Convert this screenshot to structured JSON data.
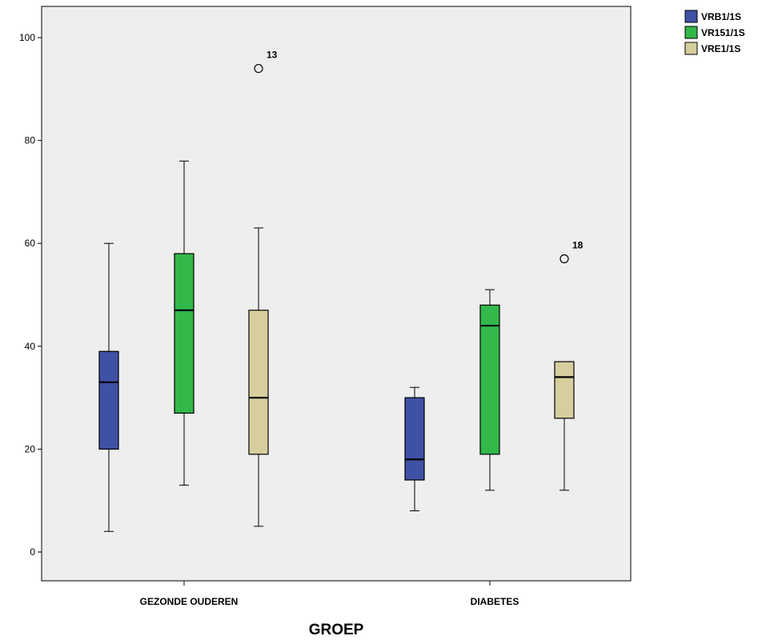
{
  "chart_data": {
    "type": "boxplot",
    "xlabel": "GROEP",
    "ylabel": "",
    "ylim": [
      -5,
      106
    ],
    "yticks": [
      0,
      20,
      40,
      60,
      80,
      100
    ],
    "categories": [
      "GEZONDE OUDEREN",
      "DIABETES"
    ],
    "legend_position": "top-right, outside plot area",
    "background": "#eeeeee",
    "series": [
      {
        "name": "VRB1/1S",
        "color": "#3f51a5",
        "boxes": [
          {
            "min": 4,
            "q1": 20,
            "median": 33,
            "q3": 39,
            "max": 60,
            "outliers": []
          },
          {
            "min": 8,
            "q1": 14,
            "median": 18,
            "q3": 30,
            "max": 32,
            "outliers": []
          }
        ]
      },
      {
        "name": "VR151/1S",
        "color": "#33b84a",
        "boxes": [
          {
            "min": 13,
            "q1": 27,
            "median": 47,
            "q3": 58,
            "max": 76,
            "outliers": []
          },
          {
            "min": 12,
            "q1": 19,
            "median": 44,
            "q3": 48,
            "max": 51,
            "outliers": []
          }
        ]
      },
      {
        "name": "VRE1/1S",
        "color": "#d6cf9d",
        "boxes": [
          {
            "min": 5,
            "q1": 19,
            "median": 30,
            "q3": 47,
            "max": 63,
            "outliers": [
              {
                "value": 94,
                "label": "13"
              }
            ]
          },
          {
            "min": 12,
            "q1": 26,
            "median": 34,
            "q3": 37,
            "max": 37,
            "outliers": [
              {
                "value": 57,
                "label": "18"
              }
            ]
          }
        ]
      }
    ]
  }
}
